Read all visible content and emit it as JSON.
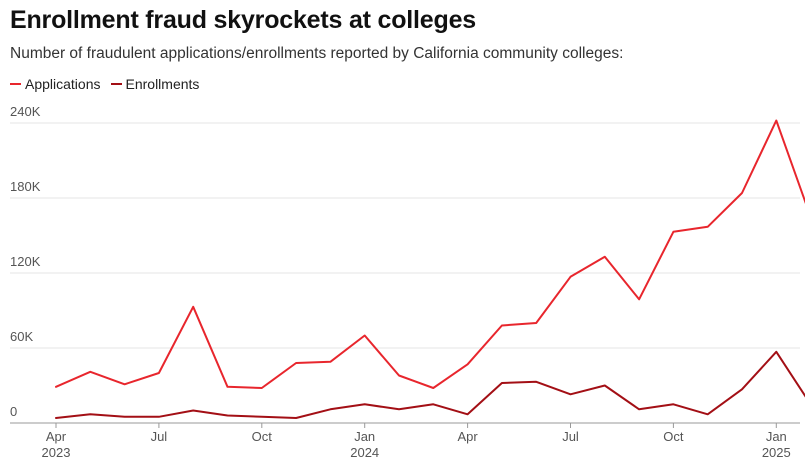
{
  "title": "Enrollment fraud skyrockets at colleges",
  "subtitle": "Number of fraudulent applications/enrollments reported by California community colleges:",
  "colors": {
    "applications": "#e8262d",
    "enrollments": "#a30f15",
    "grid": "#e6e6e6",
    "axis": "#999999"
  },
  "chart_data": {
    "type": "line",
    "title": "Enrollment fraud skyrockets at colleges",
    "subtitle": "Number of fraudulent applications/enrollments reported by California community colleges:",
    "legend_position": "top-left",
    "grid": true,
    "x": [
      "2023-04",
      "2023-05",
      "2023-06",
      "2023-07",
      "2023-08",
      "2023-09",
      "2023-10",
      "2023-11",
      "2023-12",
      "2024-01",
      "2024-02",
      "2024-03",
      "2024-04",
      "2024-05",
      "2024-06",
      "2024-07",
      "2024-08",
      "2024-09",
      "2024-10",
      "2024-11",
      "2024-12",
      "2025-01",
      "2025-02"
    ],
    "series": [
      {
        "name": "Applications",
        "color": "#e8262d",
        "values": [
          29000,
          41000,
          31000,
          40000,
          93000,
          29000,
          28000,
          48000,
          49000,
          70000,
          38000,
          28000,
          47000,
          78000,
          80000,
          117000,
          133000,
          99000,
          153000,
          157000,
          184000,
          242000,
          165000
        ]
      },
      {
        "name": "Enrollments",
        "color": "#a30f15",
        "values": [
          4000,
          7000,
          5000,
          5000,
          10000,
          6000,
          5000,
          4000,
          11000,
          15000,
          11000,
          15000,
          7000,
          32000,
          33000,
          23000,
          30000,
          11000,
          15000,
          7000,
          27000,
          57000,
          15000
        ]
      }
    ],
    "y_ticks": [
      {
        "value": 0,
        "label": "0"
      },
      {
        "value": 60000,
        "label": "60K"
      },
      {
        "value": 120000,
        "label": "120K"
      },
      {
        "value": 180000,
        "label": "180K"
      },
      {
        "value": 240000,
        "label": "240K"
      }
    ],
    "x_ticks": [
      {
        "index": 0,
        "label": "Apr",
        "sub": "2023"
      },
      {
        "index": 3,
        "label": "Jul",
        "sub": ""
      },
      {
        "index": 6,
        "label": "Oct",
        "sub": ""
      },
      {
        "index": 9,
        "label": "Jan",
        "sub": "2024"
      },
      {
        "index": 12,
        "label": "Apr",
        "sub": ""
      },
      {
        "index": 15,
        "label": "Jul",
        "sub": ""
      },
      {
        "index": 18,
        "label": "Oct",
        "sub": ""
      },
      {
        "index": 21,
        "label": "Jan",
        "sub": "2025"
      }
    ],
    "ylim": [
      0,
      250000
    ]
  }
}
